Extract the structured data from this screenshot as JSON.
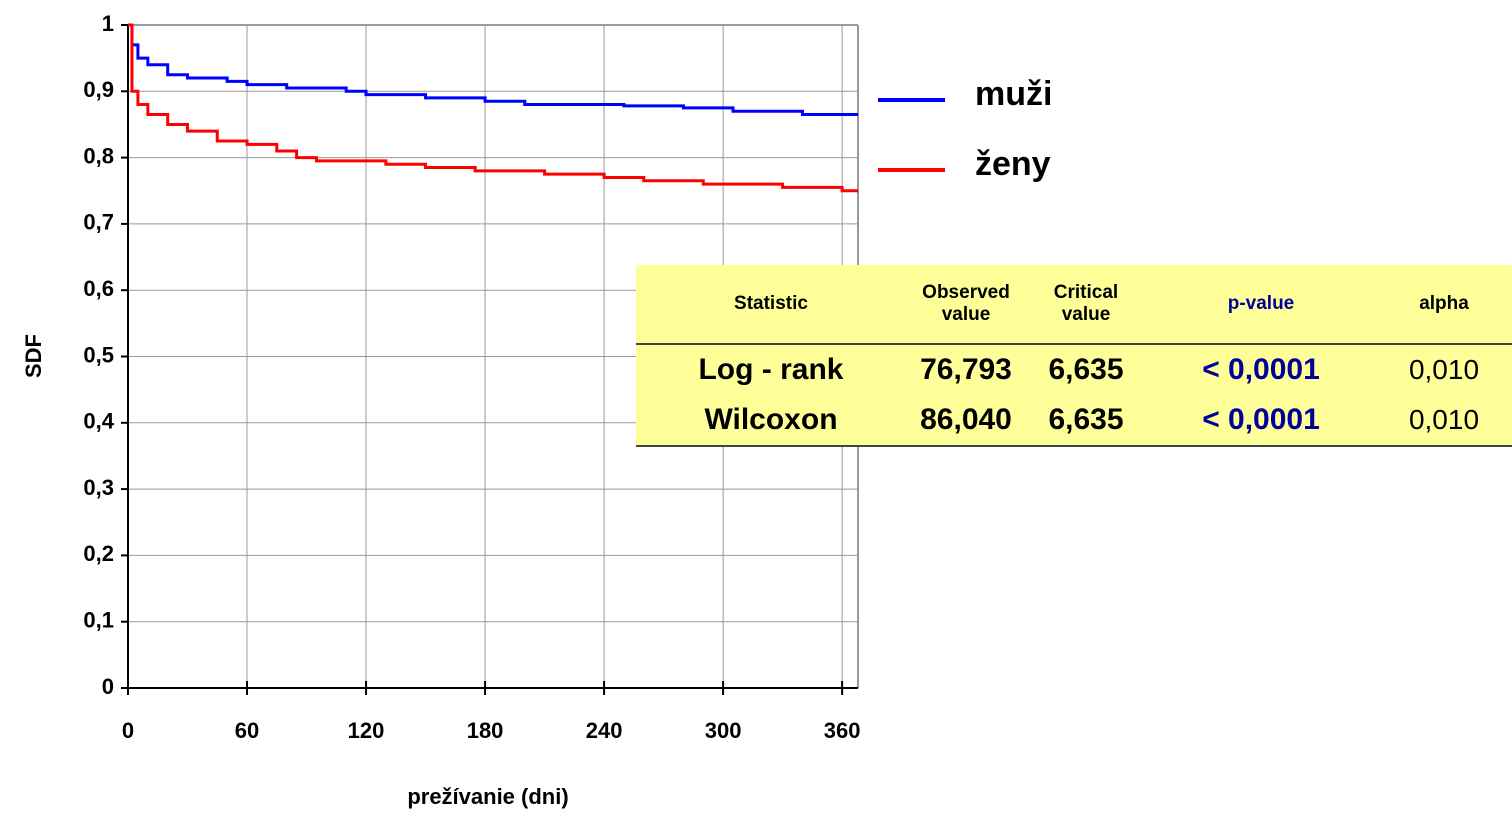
{
  "chart_data": {
    "type": "step",
    "xlabel": "prežívanie (dni)",
    "ylabel": "SDF",
    "xlim": [
      0,
      368
    ],
    "xticks": [
      0,
      60,
      120,
      180,
      240,
      300,
      360
    ],
    "ylim": [
      0,
      1
    ],
    "yticks": [
      0,
      {
        "value": 0.1,
        "label": "0,1"
      },
      {
        "value": 0.2,
        "label": "0,2"
      },
      {
        "value": 0.3,
        "label": "0,3"
      },
      {
        "value": 0.4,
        "label": "0,4"
      },
      {
        "value": 0.5,
        "label": "0,5"
      },
      {
        "value": 0.6,
        "label": "0,6"
      },
      {
        "value": 0.7,
        "label": "0,7"
      },
      {
        "value": 0.8,
        "label": "0,8"
      },
      {
        "value": 0.9,
        "label": "0,9"
      },
      1
    ],
    "grid": true,
    "series": [
      {
        "name": "muži",
        "color": "#0000ff",
        "x": [
          0,
          2,
          5,
          10,
          20,
          30,
          50,
          60,
          80,
          110,
          120,
          150,
          180,
          200,
          250,
          280,
          305,
          340,
          368
        ],
        "values": [
          1,
          0.97,
          0.95,
          0.94,
          0.925,
          0.92,
          0.915,
          0.91,
          0.905,
          0.9,
          0.895,
          0.89,
          0.885,
          0.88,
          0.878,
          0.875,
          0.87,
          0.865,
          0.865
        ]
      },
      {
        "name": "ženy",
        "color": "#ff0000",
        "x": [
          0,
          2,
          5,
          10,
          20,
          30,
          45,
          60,
          75,
          85,
          95,
          130,
          150,
          175,
          210,
          240,
          260,
          290,
          330,
          360,
          368
        ],
        "values": [
          1,
          0.9,
          0.88,
          0.865,
          0.85,
          0.84,
          0.825,
          0.82,
          0.81,
          0.8,
          0.795,
          0.79,
          0.785,
          0.78,
          0.775,
          0.77,
          0.765,
          0.76,
          0.755,
          0.75,
          0.75
        ]
      }
    ]
  },
  "table": {
    "headers": [
      "Statistic",
      "Observed value",
      "Critical value",
      "p-value",
      "alpha"
    ],
    "rows": [
      [
        "Log - rank",
        "76,793",
        "6,635",
        "< 0,0001",
        "0,010"
      ],
      [
        "Wilcoxon",
        "86,040",
        "6,635",
        "< 0,0001",
        "0,010"
      ]
    ]
  }
}
